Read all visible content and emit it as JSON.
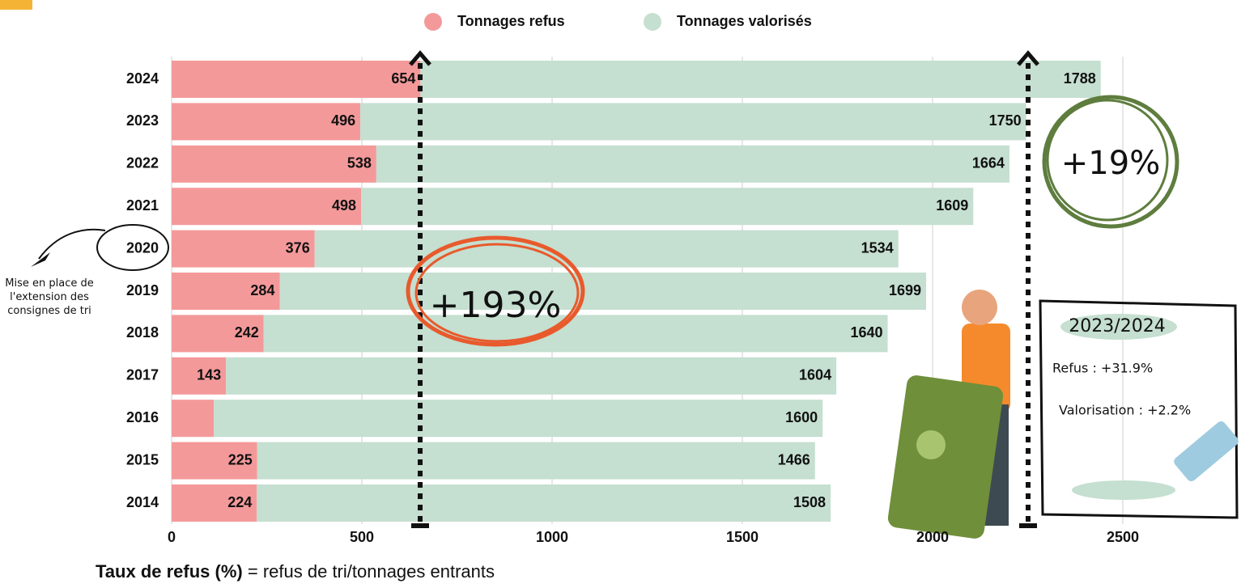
{
  "chart_data": {
    "type": "bar",
    "orientation": "horizontal",
    "stacked": true,
    "categories": [
      "2024",
      "2023",
      "2022",
      "2021",
      "2020",
      "2019",
      "2018",
      "2017",
      "2016",
      "2015",
      "2014"
    ],
    "series": [
      {
        "name": "Tonnages refus",
        "color": "#f4999a",
        "values": [
          654,
          496,
          538,
          498,
          376,
          284,
          242,
          143,
          111,
          225,
          224
        ],
        "value_labels": [
          "654",
          "496",
          "538",
          "498",
          "376",
          "284",
          "242",
          "143",
          null,
          "225",
          "224"
        ]
      },
      {
        "name": "Tonnages valorisés",
        "color": "#c5dfd0",
        "values": [
          1788,
          1750,
          1664,
          1609,
          1534,
          1699,
          1640,
          1604,
          1600,
          1466,
          1508
        ],
        "value_labels": [
          "1788",
          "1750",
          "1664",
          "1609",
          "1534",
          "1699",
          "1640",
          "1604",
          "1600",
          "1466",
          "1508"
        ]
      }
    ],
    "xlim": [
      0,
      2800
    ],
    "xticks": [
      0,
      500,
      1000,
      1500,
      2000,
      2500
    ],
    "grid": true,
    "legend": "top",
    "annotations": {
      "refus_growth": "+193%",
      "total_growth": "+19%",
      "period": "2023/2024",
      "refus_change": "Refus : +31.9%",
      "valorisation_change": "Valorisation : +2.2%",
      "note": "Mise en place de l'extension des consignes de tri"
    },
    "footnote": {
      "term": "Taux de refus (%)",
      "definition": "= refus de tri/tonnages entrants"
    }
  }
}
